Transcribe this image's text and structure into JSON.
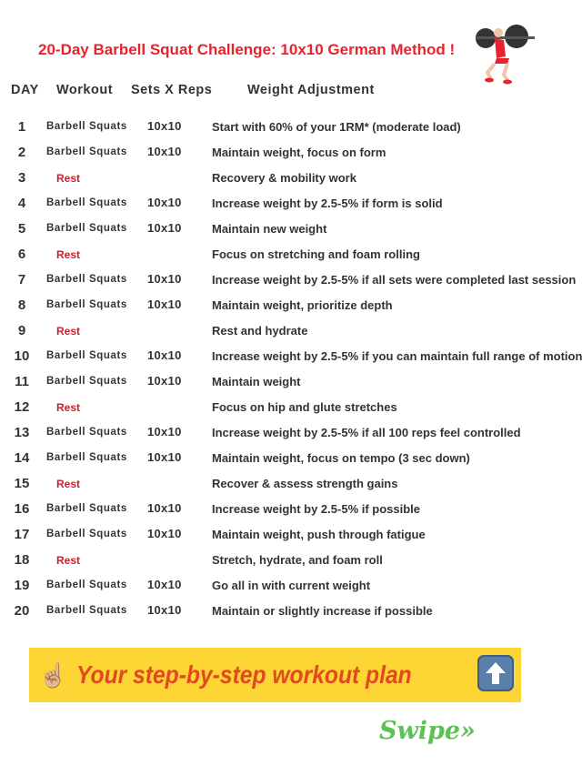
{
  "title": "20-Day Barbell Squat Challenge: 10x10 German Method !",
  "headers": {
    "day": "DAY",
    "workout": "Workout",
    "sets": "Sets X Reps",
    "weight": "Weight Adjustment"
  },
  "rows": [
    {
      "day": "1",
      "workout": "Barbell Squats",
      "sets": "10x10",
      "weight": "Start with 60% of your 1RM* (moderate load)"
    },
    {
      "day": "2",
      "workout": "Barbell Squats",
      "sets": "10x10",
      "weight": "Maintain weight, focus on form"
    },
    {
      "day": "3",
      "workout": "Rest",
      "sets": "",
      "weight": "Recovery & mobility work"
    },
    {
      "day": "4",
      "workout": "Barbell Squats",
      "sets": "10x10",
      "weight": "Increase weight by 2.5-5% if form is solid"
    },
    {
      "day": "5",
      "workout": "Barbell Squats",
      "sets": "10x10",
      "weight": "Maintain new weight"
    },
    {
      "day": "6",
      "workout": "Rest",
      "sets": "",
      "weight": "Focus on stretching and foam rolling"
    },
    {
      "day": "7",
      "workout": "Barbell Squats",
      "sets": "10x10",
      "weight": "Increase weight by 2.5-5% if all sets were completed last session"
    },
    {
      "day": "8",
      "workout": "Barbell Squats",
      "sets": "10x10",
      "weight": "Maintain weight, prioritize depth"
    },
    {
      "day": "9",
      "workout": "Rest",
      "sets": "",
      "weight": "Rest and hydrate"
    },
    {
      "day": "10",
      "workout": "Barbell Squats",
      "sets": "10x10",
      "weight": "Increase weight by 2.5-5% if you can maintain full range of motion"
    },
    {
      "day": "11",
      "workout": "Barbell Squats",
      "sets": "10x10",
      "weight": "Maintain weight"
    },
    {
      "day": "12",
      "workout": "Rest",
      "sets": "",
      "weight": "Focus on hip and glute stretches"
    },
    {
      "day": "13",
      "workout": "Barbell Squats",
      "sets": "10x10",
      "weight": "Increase weight by 2.5-5% if all 100 reps feel controlled"
    },
    {
      "day": "14",
      "workout": "Barbell Squats",
      "sets": "10x10",
      "weight": "Maintain weight, focus on tempo (3 sec down)"
    },
    {
      "day": "15",
      "workout": "Rest",
      "sets": "",
      "weight": "Recover & assess strength gains"
    },
    {
      "day": "16",
      "workout": "Barbell Squats",
      "sets": "10x10",
      "weight": "Increase weight by 2.5-5% if possible"
    },
    {
      "day": "17",
      "workout": "Barbell Squats",
      "sets": "10x10",
      "weight": "Maintain weight, push through fatigue"
    },
    {
      "day": "18",
      "workout": "Rest",
      "sets": "",
      "weight": "Stretch, hydrate, and foam roll"
    },
    {
      "day": "19",
      "workout": "Barbell Squats",
      "sets": "10x10",
      "weight": "Go all in with current weight"
    },
    {
      "day": "20",
      "workout": "Barbell Squats",
      "sets": "10x10",
      "weight": "Maintain or slightly increase if possible"
    }
  ],
  "banner": {
    "text": "Your step-by-step workout plan",
    "hand_icon": "pointing-up-hand",
    "arrow_icon": "up-arrow"
  },
  "swipe": "Swipe»",
  "colors": {
    "title": "#e8232f",
    "rest": "#c8232c",
    "banner_bg": "#fdd535",
    "banner_text": "#e04a1f",
    "swipe": "#5cc253"
  }
}
